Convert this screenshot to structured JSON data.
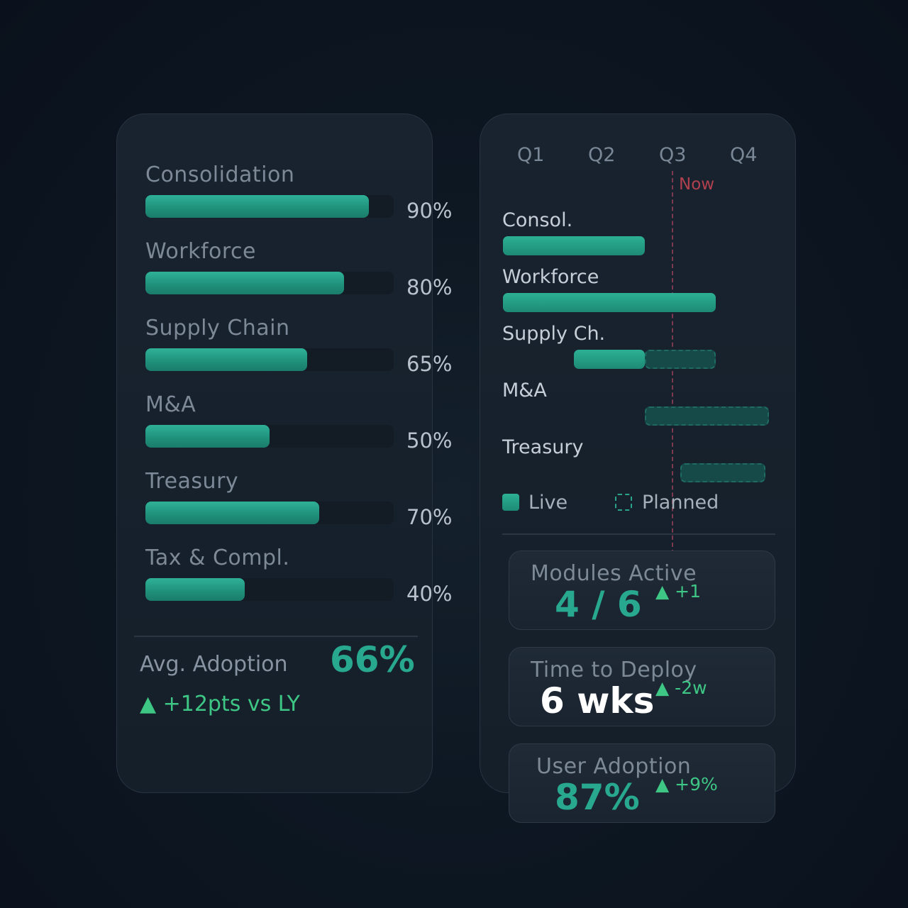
{
  "chart_data": [
    {
      "type": "bar",
      "orientation": "horizontal",
      "categories": [
        "Consolidation",
        "Workforce",
        "Supply Chain",
        "M&A",
        "Treasury",
        "Tax & Compl."
      ],
      "values": [
        90,
        80,
        65,
        50,
        70,
        40
      ],
      "value_labels": [
        "90%",
        "80%",
        "65%",
        "50%",
        "70%",
        "40%"
      ],
      "xlim": [
        0,
        100
      ],
      "grid": false
    },
    {
      "type": "gantt",
      "quarters": [
        "Q1",
        "Q2",
        "Q3",
        "Q4"
      ],
      "now_marker": {
        "label": "Now",
        "quarter_position": 3.0
      },
      "rows": [
        {
          "label": "Consol.",
          "live": [
            1,
            3
          ],
          "planned": null
        },
        {
          "label": "Workforce",
          "live": [
            1,
            4
          ],
          "planned": null
        },
        {
          "label": "Supply Ch.",
          "live": [
            2,
            3
          ],
          "planned": [
            3,
            4
          ]
        },
        {
          "label": "M&A",
          "live": null,
          "planned": [
            3,
            4.75
          ]
        },
        {
          "label": "Treasury",
          "live": null,
          "planned": [
            3.5,
            4.7
          ]
        }
      ],
      "legend": {
        "live": "Live",
        "planned": "Planned"
      }
    }
  ],
  "summary": {
    "avg_label": "Avg. Adoption",
    "avg_value": "66%",
    "avg_trend": "▲ +12pts vs LY"
  },
  "kpis": [
    {
      "label": "Modules Active",
      "value": "4 / 6",
      "delta": "▲ +1",
      "value_color": "#27a88f"
    },
    {
      "label": "Time to Deploy",
      "value": "6 wks",
      "delta": "▲ -2w",
      "value_color": "#ffffff"
    },
    {
      "label": "User Adoption",
      "value": "87%",
      "delta": "▲ +9%",
      "value_color": "#27a88f"
    }
  ],
  "colors": {
    "accent": "#27a88f",
    "positive": "#3ec685",
    "now": "#b0404e"
  }
}
